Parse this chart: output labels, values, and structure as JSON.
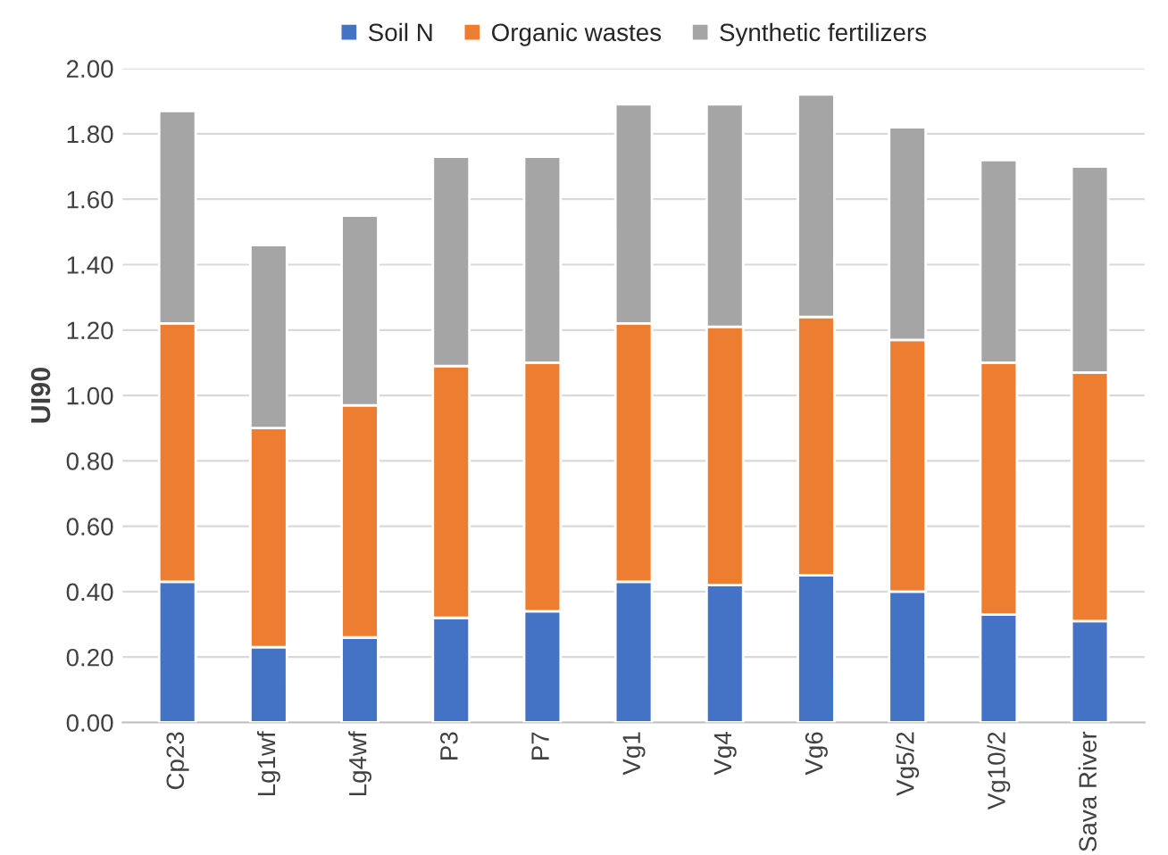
{
  "chart_data": {
    "type": "bar",
    "stacked": true,
    "ylabel": "UI90",
    "categories": [
      "Cp23",
      "Lg1wf",
      "Lg4wf",
      "P3",
      "P7",
      "Vg1",
      "Vg4",
      "Vg6",
      "Vg5/2",
      "Vg10/2",
      "Sava River"
    ],
    "series": [
      {
        "name": "Soil N",
        "color": "#4472c4",
        "values": [
          0.43,
          0.23,
          0.26,
          0.32,
          0.34,
          0.43,
          0.42,
          0.45,
          0.4,
          0.33,
          0.31
        ]
      },
      {
        "name": "Organic wastes",
        "color": "#ed7d31",
        "values": [
          0.79,
          0.67,
          0.71,
          0.77,
          0.76,
          0.79,
          0.79,
          0.79,
          0.77,
          0.77,
          0.76
        ]
      },
      {
        "name": "Synthetic fertilizers",
        "color": "#a5a5a5",
        "values": [
          0.65,
          0.56,
          0.58,
          0.64,
          0.63,
          0.67,
          0.68,
          0.68,
          0.65,
          0.62,
          0.63
        ]
      }
    ],
    "ylim": [
      0,
      2
    ],
    "yticks": [
      {
        "value": 0,
        "label": "0.00"
      },
      {
        "value": 0.2,
        "label": "0.20"
      },
      {
        "value": 0.4,
        "label": "0.40"
      },
      {
        "value": 0.6,
        "label": "0.60"
      },
      {
        "value": 0.8,
        "label": "0.80"
      },
      {
        "value": 1.0,
        "label": "1.00"
      },
      {
        "value": 1.2,
        "label": "1.20"
      },
      {
        "value": 1.4,
        "label": "1.40"
      },
      {
        "value": 1.6,
        "label": "1.60"
      },
      {
        "value": 1.8,
        "label": "1.80"
      },
      {
        "value": 2.0,
        "label": "2.00"
      }
    ],
    "grid": "y",
    "legend": "top"
  }
}
